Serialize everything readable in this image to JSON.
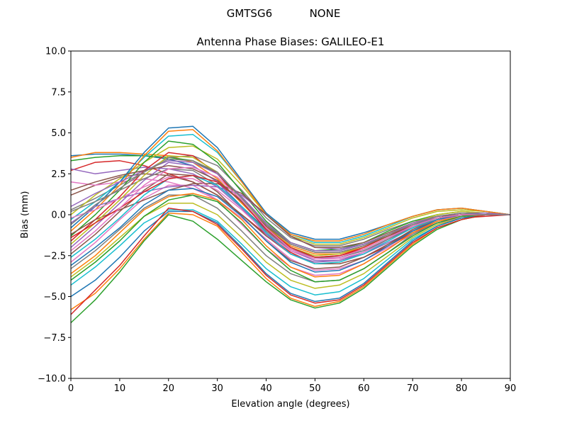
{
  "suptitle": "GMTSG6           NONE",
  "chart_data": {
    "type": "line",
    "title": "Antenna Phase Biases: GALILEO-E1",
    "xlabel": "Elevation angle (degrees)",
    "ylabel": "Bias (mm)",
    "xlim": [
      0,
      90
    ],
    "ylim": [
      -10,
      10
    ],
    "xticks": [
      0,
      10,
      20,
      30,
      40,
      50,
      60,
      70,
      80,
      90
    ],
    "yticks": [
      -10.0,
      -7.5,
      -5.0,
      -2.5,
      0.0,
      2.5,
      5.0,
      7.5,
      10.0
    ],
    "xtick_labels": [
      "0",
      "10",
      "20",
      "30",
      "40",
      "50",
      "60",
      "70",
      "80",
      "90"
    ],
    "ytick_labels": [
      "−10.0",
      "−7.5",
      "−5.0",
      "−2.5",
      "0.0",
      "2.5",
      "5.0",
      "7.5",
      "10.0"
    ],
    "grid": false,
    "legend": "none",
    "palette": [
      "#1f77b4",
      "#ff7f0e",
      "#2ca02c",
      "#d62728",
      "#9467bd",
      "#8c564b",
      "#e377c2",
      "#7f7f7f",
      "#bcbd22",
      "#17becf"
    ],
    "x": [
      0,
      5,
      10,
      15,
      20,
      25,
      30,
      35,
      40,
      45,
      50,
      55,
      60,
      65,
      70,
      75,
      80,
      85,
      90
    ],
    "series": [
      {
        "values": [
          3.6,
          3.7,
          3.7,
          3.6,
          3.4,
          3.0,
          2.0,
          0.5,
          -0.9,
          -2.0,
          -2.6,
          -2.6,
          -2.2,
          -1.5,
          -0.8,
          -0.3,
          -0.1,
          0.0,
          0.0
        ]
      },
      {
        "values": [
          3.5,
          3.8,
          3.8,
          3.7,
          3.6,
          3.2,
          2.2,
          0.7,
          -0.8,
          -1.9,
          -2.4,
          -2.4,
          -2.0,
          -1.3,
          -0.6,
          -0.2,
          0.0,
          0.0,
          0.0
        ]
      },
      {
        "values": [
          3.3,
          3.5,
          3.6,
          3.6,
          3.5,
          3.3,
          2.5,
          1.0,
          -0.6,
          -1.7,
          -2.2,
          -2.2,
          -1.8,
          -1.2,
          -0.6,
          -0.2,
          0.0,
          0.0,
          0.0
        ]
      },
      {
        "values": [
          2.7,
          3.2,
          3.3,
          3.0,
          2.5,
          2.0,
          1.2,
          0.0,
          -1.2,
          -2.3,
          -3.0,
          -3.0,
          -2.6,
          -1.9,
          -1.1,
          -0.5,
          -0.2,
          -0.1,
          0.0
        ]
      },
      {
        "values": [
          2.8,
          2.5,
          2.7,
          2.9,
          2.8,
          2.5,
          1.7,
          0.4,
          -1.0,
          -2.2,
          -2.8,
          -2.8,
          -2.4,
          -1.7,
          -1.0,
          -0.4,
          -0.1,
          0.0,
          0.0
        ]
      },
      {
        "values": [
          1.2,
          1.8,
          2.3,
          2.5,
          2.4,
          2.0,
          1.2,
          0.0,
          -1.3,
          -2.4,
          -3.0,
          -3.0,
          -2.6,
          -1.8,
          -1.0,
          -0.4,
          -0.1,
          0.0,
          0.0
        ]
      },
      {
        "values": [
          2.0,
          1.8,
          2.0,
          2.2,
          2.0,
          1.6,
          0.9,
          -0.2,
          -1.5,
          -2.7,
          -3.4,
          -3.3,
          -2.8,
          -2.0,
          -1.2,
          -0.5,
          -0.2,
          0.0,
          0.0
        ]
      },
      {
        "values": [
          0.3,
          1.0,
          1.8,
          2.6,
          3.5,
          3.6,
          3.0,
          1.5,
          -0.2,
          -1.4,
          -1.9,
          -1.9,
          -1.5,
          -0.9,
          -0.4,
          -0.1,
          0.1,
          0.1,
          0.0
        ]
      },
      {
        "values": [
          0.0,
          1.2,
          2.2,
          3.2,
          4.1,
          4.2,
          3.4,
          1.8,
          0.0,
          -1.3,
          -1.8,
          -1.8,
          -1.4,
          -0.8,
          -0.2,
          0.2,
          0.3,
          0.2,
          0.0
        ]
      },
      {
        "values": [
          -0.3,
          0.8,
          2.0,
          3.5,
          4.8,
          4.9,
          3.8,
          2.0,
          0.1,
          -1.2,
          -1.7,
          -1.7,
          -1.3,
          -0.7,
          -0.1,
          0.3,
          0.4,
          0.2,
          0.0
        ]
      },
      {
        "values": [
          -0.8,
          0.5,
          2.0,
          3.8,
          5.3,
          5.4,
          4.1,
          2.1,
          0.1,
          -1.1,
          -1.5,
          -1.5,
          -1.1,
          -0.6,
          -0.1,
          0.3,
          0.4,
          0.2,
          0.0
        ]
      },
      {
        "values": [
          -1.0,
          0.3,
          1.8,
          3.6,
          5.1,
          5.2,
          3.9,
          2.0,
          0.0,
          -1.2,
          -1.6,
          -1.6,
          -1.2,
          -0.6,
          -0.1,
          0.3,
          0.4,
          0.2,
          0.0
        ]
      },
      {
        "values": [
          -1.3,
          0.0,
          1.5,
          3.2,
          4.5,
          4.3,
          3.2,
          1.4,
          -0.4,
          -1.7,
          -2.2,
          -2.1,
          -1.7,
          -1.0,
          -0.4,
          0.0,
          0.2,
          0.1,
          0.0
        ]
      },
      {
        "values": [
          -1.6,
          -0.3,
          1.1,
          2.7,
          3.8,
          3.6,
          2.5,
          0.8,
          -0.9,
          -2.1,
          -2.6,
          -2.5,
          -2.0,
          -1.3,
          -0.6,
          -0.1,
          0.1,
          0.1,
          0.0
        ]
      },
      {
        "values": [
          -2.0,
          -0.7,
          0.7,
          2.1,
          3.2,
          3.0,
          2.0,
          0.4,
          -1.2,
          -2.4,
          -2.9,
          -2.8,
          -2.3,
          -1.5,
          -0.7,
          -0.2,
          0.0,
          0.0,
          0.0
        ]
      },
      {
        "values": [
          -2.4,
          -1.2,
          0.2,
          1.5,
          2.5,
          2.4,
          1.4,
          -0.1,
          -1.6,
          -2.8,
          -3.3,
          -3.2,
          -2.6,
          -1.8,
          -0.9,
          -0.3,
          0.0,
          0.0,
          0.0
        ]
      },
      {
        "values": [
          -2.9,
          -1.7,
          -0.3,
          1.0,
          1.8,
          1.8,
          0.9,
          -0.6,
          -2.1,
          -3.2,
          -3.7,
          -3.6,
          -3.0,
          -2.1,
          -1.1,
          -0.4,
          -0.1,
          0.0,
          0.0
        ]
      },
      {
        "values": [
          -3.3,
          -2.2,
          -0.9,
          0.4,
          1.2,
          1.2,
          0.4,
          -1.0,
          -2.5,
          -3.6,
          -4.1,
          -4.0,
          -3.3,
          -2.3,
          -1.2,
          -0.5,
          -0.1,
          0.0,
          0.0
        ]
      },
      {
        "values": [
          -3.8,
          -2.7,
          -1.4,
          -0.1,
          0.7,
          0.7,
          0.0,
          -1.4,
          -2.9,
          -4.0,
          -4.5,
          -4.3,
          -3.6,
          -2.5,
          -1.4,
          -0.6,
          -0.2,
          0.0,
          0.0
        ]
      },
      {
        "values": [
          -4.3,
          -3.2,
          -1.9,
          -0.5,
          0.3,
          0.3,
          -0.4,
          -1.8,
          -3.3,
          -4.4,
          -4.9,
          -4.7,
          -3.9,
          -2.7,
          -1.5,
          -0.7,
          -0.2,
          0.0,
          0.0
        ]
      },
      {
        "values": [
          -5.0,
          -4.0,
          -2.6,
          -1.0,
          0.2,
          0.2,
          -0.5,
          -2.0,
          -3.6,
          -4.8,
          -5.3,
          -5.1,
          -4.2,
          -2.9,
          -1.6,
          -0.7,
          -0.2,
          0.0,
          0.0
        ]
      },
      {
        "values": [
          -5.8,
          -4.8,
          -3.3,
          -1.5,
          0.1,
          0.0,
          -0.7,
          -2.3,
          -3.9,
          -5.1,
          -5.6,
          -5.3,
          -4.4,
          -3.1,
          -1.8,
          -0.8,
          -0.3,
          0.0,
          0.0
        ]
      },
      {
        "values": [
          -6.6,
          -5.2,
          -3.5,
          -1.6,
          0.0,
          -0.4,
          -1.5,
          -2.8,
          -4.1,
          -5.2,
          -5.7,
          -5.4,
          -4.5,
          -3.2,
          -1.9,
          -0.9,
          -0.3,
          0.0,
          0.0
        ]
      },
      {
        "values": [
          -6.1,
          -4.6,
          -3.1,
          -1.3,
          0.4,
          0.2,
          -0.6,
          -2.1,
          -3.7,
          -4.9,
          -5.4,
          -5.2,
          -4.3,
          -3.0,
          -1.7,
          -0.8,
          -0.3,
          0.0,
          0.0
        ]
      },
      {
        "values": [
          -0.5,
          0.5,
          1.0,
          1.4,
          1.7,
          1.8,
          1.7,
          1.2,
          0.0,
          -1.3,
          -2.0,
          -2.1,
          -1.8,
          -1.2,
          -0.6,
          -0.2,
          0.0,
          0.0,
          0.0
        ]
      },
      {
        "values": [
          -1.2,
          -0.3,
          0.3,
          0.9,
          1.5,
          1.9,
          1.9,
          1.3,
          0.0,
          -1.3,
          -2.0,
          -2.0,
          -1.7,
          -1.1,
          -0.5,
          -0.1,
          0.0,
          0.0,
          0.0
        ]
      },
      {
        "values": [
          -0.2,
          0.3,
          1.0,
          1.7,
          2.3,
          2.2,
          1.5,
          0.3,
          -1.1,
          -2.2,
          -2.7,
          -2.7,
          -2.3,
          -1.6,
          -0.8,
          -0.3,
          -0.1,
          0.0,
          0.0
        ]
      },
      {
        "values": [
          0.2,
          0.8,
          1.5,
          2.2,
          2.8,
          2.7,
          1.8,
          0.5,
          -1.0,
          -2.1,
          -2.6,
          -2.6,
          -2.2,
          -1.5,
          -0.8,
          -0.3,
          0.0,
          0.0,
          0.0
        ]
      },
      {
        "values": [
          -1.8,
          -0.5,
          0.9,
          2.4,
          3.6,
          3.5,
          2.6,
          1.0,
          -0.7,
          -2.0,
          -2.5,
          -2.4,
          -1.9,
          -1.2,
          -0.5,
          0.0,
          0.2,
          0.1,
          0.0
        ]
      },
      {
        "values": [
          -2.6,
          -1.5,
          -0.2,
          1.2,
          2.2,
          2.4,
          1.8,
          0.5,
          -1.1,
          -2.4,
          -3.0,
          -2.9,
          -2.4,
          -1.6,
          -0.8,
          -0.2,
          0.0,
          0.0,
          0.0
        ]
      },
      {
        "values": [
          -3.1,
          -2.0,
          -0.8,
          0.6,
          1.5,
          1.6,
          1.1,
          -0.1,
          -1.6,
          -2.9,
          -3.5,
          -3.4,
          -2.8,
          -1.9,
          -1.0,
          -0.3,
          0.0,
          0.0,
          0.0
        ]
      },
      {
        "values": [
          -3.6,
          -2.5,
          -1.1,
          0.3,
          1.1,
          1.3,
          0.9,
          -0.3,
          -1.9,
          -3.2,
          -3.8,
          -3.7,
          -3.0,
          -2.1,
          -1.1,
          -0.4,
          -0.1,
          0.0,
          0.0
        ]
      },
      {
        "values": [
          -4.0,
          -2.9,
          -1.6,
          -0.1,
          0.9,
          1.2,
          0.8,
          -0.5,
          -2.1,
          -3.4,
          -4.1,
          -4.0,
          -3.3,
          -2.3,
          -1.3,
          -0.5,
          -0.1,
          0.0,
          0.0
        ]
      },
      {
        "values": [
          -1.4,
          -0.5,
          0.4,
          1.4,
          2.2,
          2.4,
          2.0,
          0.8,
          -0.8,
          -2.0,
          -2.6,
          -2.5,
          -2.1,
          -1.4,
          -0.7,
          -0.2,
          0.0,
          0.0,
          0.0
        ]
      },
      {
        "values": [
          0.5,
          1.3,
          2.0,
          2.7,
          3.3,
          3.2,
          2.5,
          1.1,
          -0.5,
          -1.7,
          -2.2,
          -2.2,
          -1.8,
          -1.2,
          -0.5,
          -0.1,
          0.1,
          0.1,
          0.0
        ]
      },
      {
        "values": [
          1.5,
          2.0,
          2.4,
          2.7,
          3.0,
          2.8,
          2.1,
          0.8,
          -0.7,
          -1.8,
          -2.3,
          -2.3,
          -1.9,
          -1.3,
          -0.7,
          -0.2,
          0.0,
          0.0,
          0.0
        ]
      },
      {
        "values": [
          -2.2,
          -1.0,
          0.4,
          1.8,
          2.8,
          2.9,
          2.3,
          0.9,
          -0.8,
          -2.1,
          -2.7,
          -2.6,
          -2.1,
          -1.4,
          -0.7,
          -0.2,
          0.0,
          0.0,
          0.0
        ]
      },
      {
        "values": [
          -0.6,
          0.6,
          1.6,
          2.6,
          3.4,
          3.3,
          2.6,
          1.0,
          -0.6,
          -1.8,
          -2.3,
          -2.3,
          -1.9,
          -1.2,
          -0.6,
          -0.1,
          0.1,
          0.0,
          0.0
        ]
      }
    ]
  }
}
